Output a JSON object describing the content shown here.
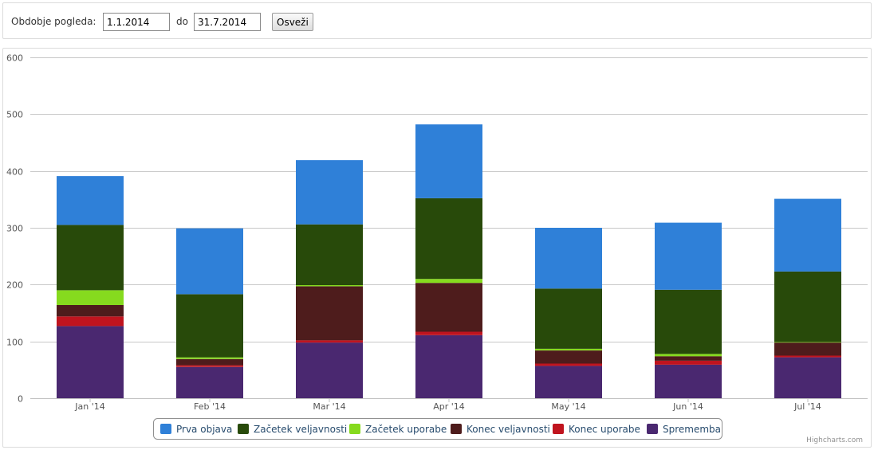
{
  "filter": {
    "period_label": "Obdobje pogleda:",
    "date_from": "1.1.2014",
    "to_label": "do",
    "date_to": "31.7.2014",
    "refresh_label": "Osveži"
  },
  "chart_data": {
    "type": "bar",
    "stacked": true,
    "categories": [
      "Jan '14",
      "Feb '14",
      "Mar '14",
      "Apr '14",
      "May '14",
      "Jun '14",
      "Jul '14"
    ],
    "ylim": [
      0,
      600
    ],
    "yticks": [
      0,
      100,
      200,
      300,
      400,
      500,
      600
    ],
    "grid": true,
    "legend_position": "bottom-center",
    "credits": "Highcharts.com",
    "series": [
      {
        "name": "Sprememba",
        "color": "#4a2870",
        "values": [
          127,
          55,
          98,
          111,
          57,
          59,
          72
        ]
      },
      {
        "name": "Konec uporabe",
        "color": "#c0141e",
        "values": [
          17,
          3,
          4,
          6,
          4,
          7,
          3
        ]
      },
      {
        "name": "Konec veljavnosti",
        "color": "#4e1c1c",
        "values": [
          20,
          11,
          95,
          86,
          23,
          8,
          23
        ]
      },
      {
        "name": "Začetek uporabe",
        "color": "#86da1e",
        "values": [
          26,
          3,
          2,
          7,
          3,
          4,
          1
        ]
      },
      {
        "name": "Začetek veljavnosti",
        "color": "#284a0a",
        "values": [
          115,
          111,
          107,
          142,
          106,
          113,
          124
        ]
      },
      {
        "name": "Prva objava",
        "color": "#2f80d8",
        "values": [
          86,
          116,
          113,
          130,
          107,
          118,
          128
        ]
      }
    ],
    "legend_order": [
      "Prva objava",
      "Začetek veljavnosti",
      "Začetek uporabe",
      "Konec veljavnosti",
      "Konec uporabe",
      "Sprememba"
    ]
  }
}
